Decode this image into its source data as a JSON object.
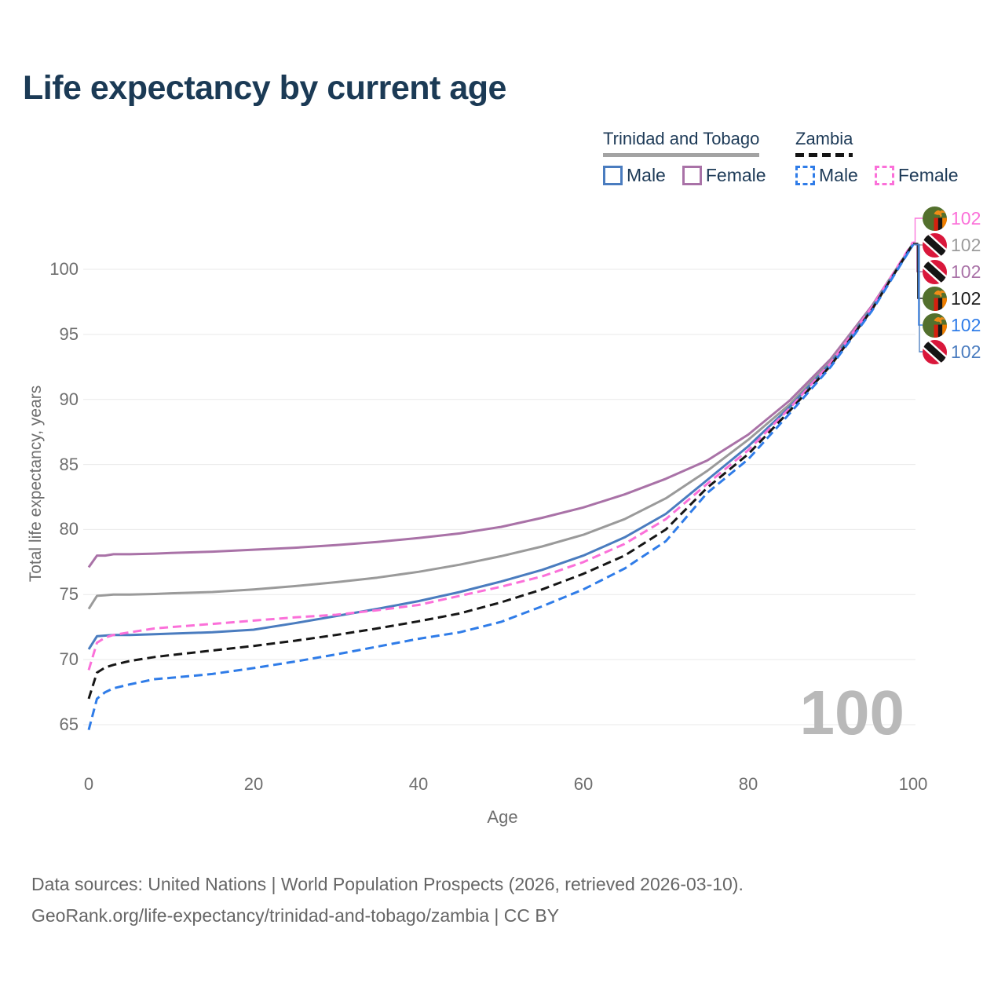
{
  "title": "Life expectancy by current age",
  "watermark": "100",
  "legend": {
    "groups": [
      {
        "label": "Trinidad and Tobago",
        "style": "solid",
        "underline_color": "#a3a3a3"
      },
      {
        "label": "Zambia",
        "style": "dashed",
        "underline_color": "#141414"
      }
    ],
    "items": [
      {
        "label": "Male",
        "color": "#4a7cbf",
        "style": "solid"
      },
      {
        "label": "Female",
        "color": "#a972a7",
        "style": "solid"
      },
      {
        "label": "Male",
        "color": "#2f7ce8",
        "style": "dashed"
      },
      {
        "label": "Female",
        "color": "#fb70d9",
        "style": "dashed"
      }
    ]
  },
  "end_labels": [
    {
      "value": "102",
      "flag": "zambia",
      "color": "#fb70d9",
      "series": 3
    },
    {
      "value": "102",
      "flag": "trinidad-and-tobago",
      "color": "#9b9b9b",
      "series": 1
    },
    {
      "value": "102",
      "flag": "trinidad-and-tobago",
      "color": "#a972a7",
      "series": 0
    },
    {
      "value": "102",
      "flag": "zambia",
      "color": "#1a1a1a",
      "series": 4
    },
    {
      "value": "102",
      "flag": "zambia",
      "color": "#2f7ce8",
      "series": 5
    },
    {
      "value": "102",
      "flag": "trinidad-and-tobago",
      "color": "#4a7cbf",
      "series": 2
    }
  ],
  "footer": {
    "line1": "Data sources: United Nations | World Population Prospects (2026, retrieved 2026-03-10).",
    "line2": "GeoRank.org/life-expectancy/trinidad-and-tobago/zambia | CC BY"
  },
  "chart_data": {
    "type": "line",
    "title": "Life expectancy by current age",
    "xlabel": "Age",
    "ylabel": "Total life expectancy, years",
    "xlim": [
      0,
      100
    ],
    "ylim": [
      63,
      104
    ],
    "xticks": [
      0,
      20,
      40,
      60,
      80,
      100
    ],
    "yticks": [
      65,
      70,
      75,
      80,
      85,
      90,
      95,
      100
    ],
    "grid": "horizontal-only",
    "legend_position": "top-right",
    "x": [
      0,
      1,
      2,
      3,
      5,
      8,
      10,
      15,
      20,
      25,
      30,
      35,
      40,
      45,
      50,
      55,
      60,
      65,
      70,
      75,
      80,
      85,
      90,
      95,
      100
    ],
    "series": [
      {
        "name": "Trinidad and Tobago — Female",
        "color": "#a972a7",
        "dash": "solid",
        "values": [
          77.1,
          78.0,
          78.0,
          78.1,
          78.1,
          78.15,
          78.2,
          78.3,
          78.45,
          78.6,
          78.8,
          79.05,
          79.35,
          79.7,
          80.2,
          80.9,
          81.7,
          82.7,
          83.9,
          85.3,
          87.3,
          89.9,
          93.1,
          97.2,
          102.0
        ]
      },
      {
        "name": "Trinidad and Tobago — Both sexes",
        "color": "#9a9a9a",
        "dash": "solid",
        "values": [
          73.9,
          74.9,
          74.95,
          75.0,
          75.0,
          75.05,
          75.1,
          75.2,
          75.4,
          75.65,
          75.95,
          76.3,
          76.75,
          77.3,
          77.95,
          78.7,
          79.6,
          80.8,
          82.4,
          84.5,
          86.9,
          89.6,
          92.9,
          97.1,
          102.0
        ]
      },
      {
        "name": "Trinidad and Tobago — Male",
        "color": "#4a7cbf",
        "dash": "solid",
        "values": [
          70.8,
          71.8,
          71.85,
          71.9,
          71.9,
          71.95,
          72.0,
          72.1,
          72.3,
          72.8,
          73.35,
          73.9,
          74.5,
          75.2,
          76.0,
          76.9,
          78.0,
          79.4,
          81.2,
          83.8,
          86.4,
          89.4,
          92.8,
          97.0,
          101.9
        ]
      },
      {
        "name": "Zambia — Female",
        "color": "#fb70d9",
        "dash": "dashed",
        "values": [
          69.2,
          71.3,
          71.7,
          71.9,
          72.1,
          72.4,
          72.5,
          72.75,
          73.0,
          73.25,
          73.45,
          73.8,
          74.2,
          74.9,
          75.6,
          76.4,
          77.5,
          78.9,
          80.8,
          83.5,
          86.1,
          89.3,
          92.8,
          97.1,
          102.1
        ]
      },
      {
        "name": "Zambia — Both sexes",
        "color": "#161616",
        "dash": "dashed",
        "values": [
          67.0,
          69.0,
          69.4,
          69.6,
          69.9,
          70.2,
          70.35,
          70.7,
          71.05,
          71.45,
          71.9,
          72.4,
          72.95,
          73.55,
          74.4,
          75.4,
          76.6,
          78.0,
          80.0,
          83.2,
          85.8,
          89.1,
          92.6,
          96.9,
          102.0
        ]
      },
      {
        "name": "Zambia — Male",
        "color": "#2f7ce8",
        "dash": "dashed",
        "values": [
          64.6,
          67.0,
          67.5,
          67.8,
          68.1,
          68.5,
          68.6,
          68.9,
          69.35,
          69.85,
          70.4,
          71.0,
          71.6,
          72.1,
          72.9,
          74.1,
          75.4,
          77.0,
          79.1,
          82.8,
          85.4,
          88.9,
          92.5,
          96.8,
          101.9
        ]
      }
    ]
  }
}
